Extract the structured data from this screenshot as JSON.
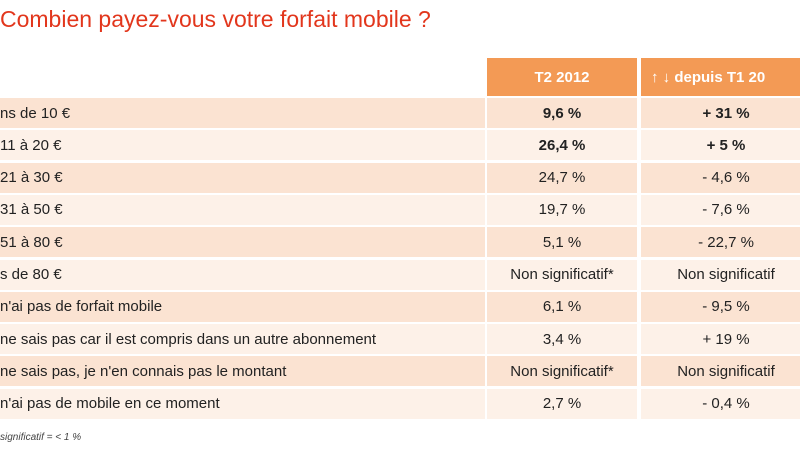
{
  "title": "Combien payez-vous votre forfait mobile ?",
  "table": {
    "header": [
      "T2 2012",
      "↑ ↓ depuis T1 20"
    ],
    "rows": [
      [
        "ns de 10 €",
        "9,6 %",
        "+ 31 %"
      ],
      [
        "11 à 20 €",
        "26,4 %",
        "+ 5 %"
      ],
      [
        "21 à 30 €",
        "24,7 %",
        "- 4,6 %"
      ],
      [
        "31 à 50 €",
        "19,7 %",
        "- 7,6 %"
      ],
      [
        "51 à 80 €",
        "5,1 %",
        "- 22,7 %"
      ],
      [
        "s de 80 €",
        "Non significatif*",
        "Non significatif"
      ],
      [
        "n'ai pas de forfait mobile",
        "6,1 %",
        "- 9,5 %"
      ],
      [
        "ne sais pas car il est compris dans un autre abonnement",
        "3,4 %",
        "+ 19 %"
      ],
      [
        "ne sais pas, je n'en connais pas le montant",
        "Non significatif*",
        "Non significatif"
      ],
      [
        "n'ai pas de mobile en ce moment",
        "2,7 %",
        "- 0,4 %"
      ]
    ]
  },
  "footnote": "significatif = < 1 %"
}
